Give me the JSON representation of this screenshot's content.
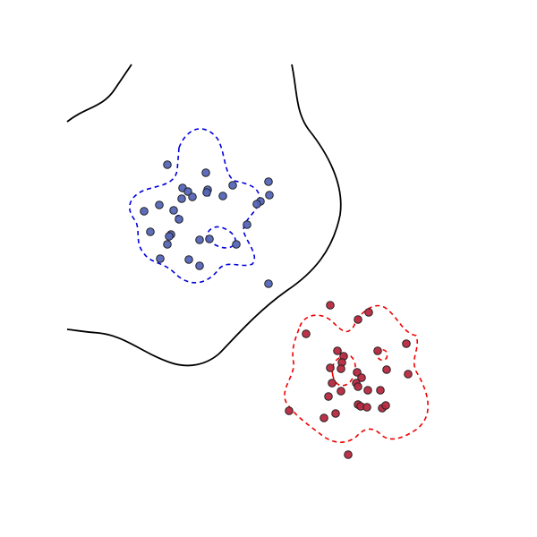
{
  "chart_data": {
    "type": "scatter",
    "xlim": [
      0,
      450
    ],
    "ylim": [
      0,
      450
    ],
    "series": [
      {
        "color": "#5566b8",
        "x": [
          112,
          155,
          129,
          135,
          157,
          156,
          140,
          128,
          174,
          185,
          225,
          226,
          216,
          212,
          86,
          103,
          119,
          125,
          201,
          93,
          116,
          114,
          112,
          148,
          159,
          189,
          104,
          136,
          148,
          225
        ],
        "values": [
          341,
          332,
          315,
          311,
          313,
          310,
          305,
          303,
          306,
          318,
          322,
          307,
          300,
          297,
          289,
          296,
          290,
          280,
          274,
          266,
          263,
          261,
          252,
          257,
          258,
          252,
          236,
          235,
          228,
          208
        ]
      },
      {
        "color": "#b8283f",
        "x": [
          294,
          337,
          325,
          267,
          379,
          302,
          309,
          347,
          307,
          306,
          294,
          324,
          357,
          381,
          329,
          323,
          325,
          296,
          336,
          350,
          306,
          292,
          325,
          328,
          335,
          352,
          356,
          248,
          300,
          287,
          314
        ],
        "values": [
          184,
          176,
          168,
          152,
          141,
          133,
          127,
          133,
          120,
          113,
          114,
          109,
          112,
          107,
          103,
          97,
          93,
          97,
          89,
          89,
          88,
          82,
          73,
          71,
          70,
          69,
          72,
          66,
          63,
          58,
          17
        ]
      }
    ]
  }
}
